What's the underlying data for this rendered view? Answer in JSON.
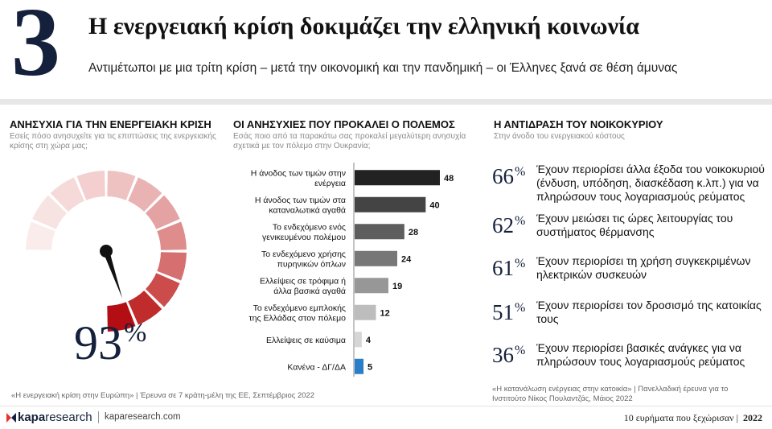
{
  "header": {
    "number": "3",
    "title": "Η ενεργειακή κρίση δοκιμάζει την ελληνική κοινωνία",
    "subtitle": "Αντιμέτωποι με μια τρίτη κρίση – μετά την οικονομική και την πανδημική – οι Έλληνες ξανά σε θέση άμυνας"
  },
  "left": {
    "title": "ΑΝΗΣΥΧΙΑ ΓΙΑ ΤΗΝ ΕΝΕΡΓΕΙΑΚΗ ΚΡΙΣΗ",
    "desc_line1": "Εσείς πόσο ανησυχείτε για τις επιπτώσεις της ενεργειακής",
    "desc_line2": "κρίσης στη χώρα μας;",
    "value": "93",
    "pct_sign": "%",
    "source": "«Η ενεργειακή κρίση στην Ευρώπη» | Έρευνα σε 7 κράτη-μέλη της ΕΕ, Σεπτέμβριος 2022"
  },
  "middle": {
    "title": "ΟΙ ΑΝΗΣΥΧΙΕΣ ΠΟΥ ΠΡΟΚΑΛΕΙ Ο ΠΟΛΕΜΟΣ",
    "desc_line1": "Εσάς ποιο από τα παρακάτω σας προκαλεί μεγαλύτερη ανησυχία",
    "desc_line2": "σχετικά με τον πόλεμο στην Ουκρανία;"
  },
  "right": {
    "title": "Η ΑΝΤΙΔΡΑΣΗ ΤΟΥ ΝΟΙΚΟΚΥΡΙΟΥ",
    "desc": "Στην άνοδο του ενεργειακού κόστους",
    "pct_sign": "%",
    "stats": [
      {
        "value": "66",
        "text": "Έχουν περιορίσει άλλα έξοδα του νοικοκυριού (ένδυση, υπόδηση, διασκέδαση κ.λπ.) για να πληρώσουν τους λογαριασμούς ρεύματος"
      },
      {
        "value": "62",
        "text": "Έχουν μειώσει τις ώρες λειτουργίας του συστήματος θέρμανσης"
      },
      {
        "value": "61",
        "text": "Έχουν περιορίσει τη χρήση συγκεκριμένων ηλεκτρικών συσκευών"
      },
      {
        "value": "51",
        "text": "Έχουν περιορίσει τον δροσισμό της κατοικίας τους"
      },
      {
        "value": "36",
        "text": "Έχουν περιορίσει βασικές ανάγκες για να πληρώσουν τους λογαριασμούς ρεύματος"
      }
    ],
    "source_line1": "«Η κατανάλωση ενέργειας στην κατοικία» | Πανελλαδική έρευνα για το",
    "source_line2": "Ινστιτούτο Νίκος Πουλαντζάς, Μάιος 2022"
  },
  "footer": {
    "logo_bold": "kapa",
    "logo_rest": "research",
    "url": "kaparesearch.com",
    "caption": "10 ευρήματα που ξεχώρισαν",
    "year": "2022"
  },
  "chart_data": [
    {
      "type": "gauge",
      "value": 93,
      "max": 100,
      "segments": 12,
      "colors": {
        "needle": "#111111",
        "segments": [
          "#fbecec",
          "#f8e3e3",
          "#f6dada",
          "#f3cfcf",
          "#efc2c2",
          "#eab3b3",
          "#e5a2a2",
          "#de8c8c",
          "#d66f6f",
          "#cc4c4c",
          "#c02c2c",
          "#b30e14"
        ]
      }
    },
    {
      "type": "bar",
      "orientation": "horizontal",
      "categories": [
        [
          "Η άνοδος των τιμών στην",
          "ενέργεια"
        ],
        [
          "Η άνοδος των τιμών στα",
          "καταναλωτικά αγαθά"
        ],
        [
          "Το ενδεχόμενο ενός",
          "γενικευμένου πολέμου"
        ],
        [
          "Το ενδεχόμενο χρήσης",
          "πυρηνικών όπλων"
        ],
        [
          "Ελλείψεις σε τρόφιμα ή",
          "άλλα βασικά αγαθά"
        ],
        [
          "Το ενδεχόμενο εμπλοκής",
          "της Ελλάδας στον πόλεμο"
        ],
        [
          "Ελλείψεις σε καύσιμα"
        ],
        [
          "Κανένα - ΔΓ/ΔΑ"
        ]
      ],
      "values": [
        48,
        40,
        28,
        24,
        19,
        12,
        4,
        5
      ],
      "colors": [
        "#222222",
        "#444444",
        "#5e5e5e",
        "#777777",
        "#979797",
        "#bdbdbd",
        "#d6d6d6",
        "#2a7ec8"
      ],
      "xlim": [
        0,
        48
      ]
    }
  ]
}
